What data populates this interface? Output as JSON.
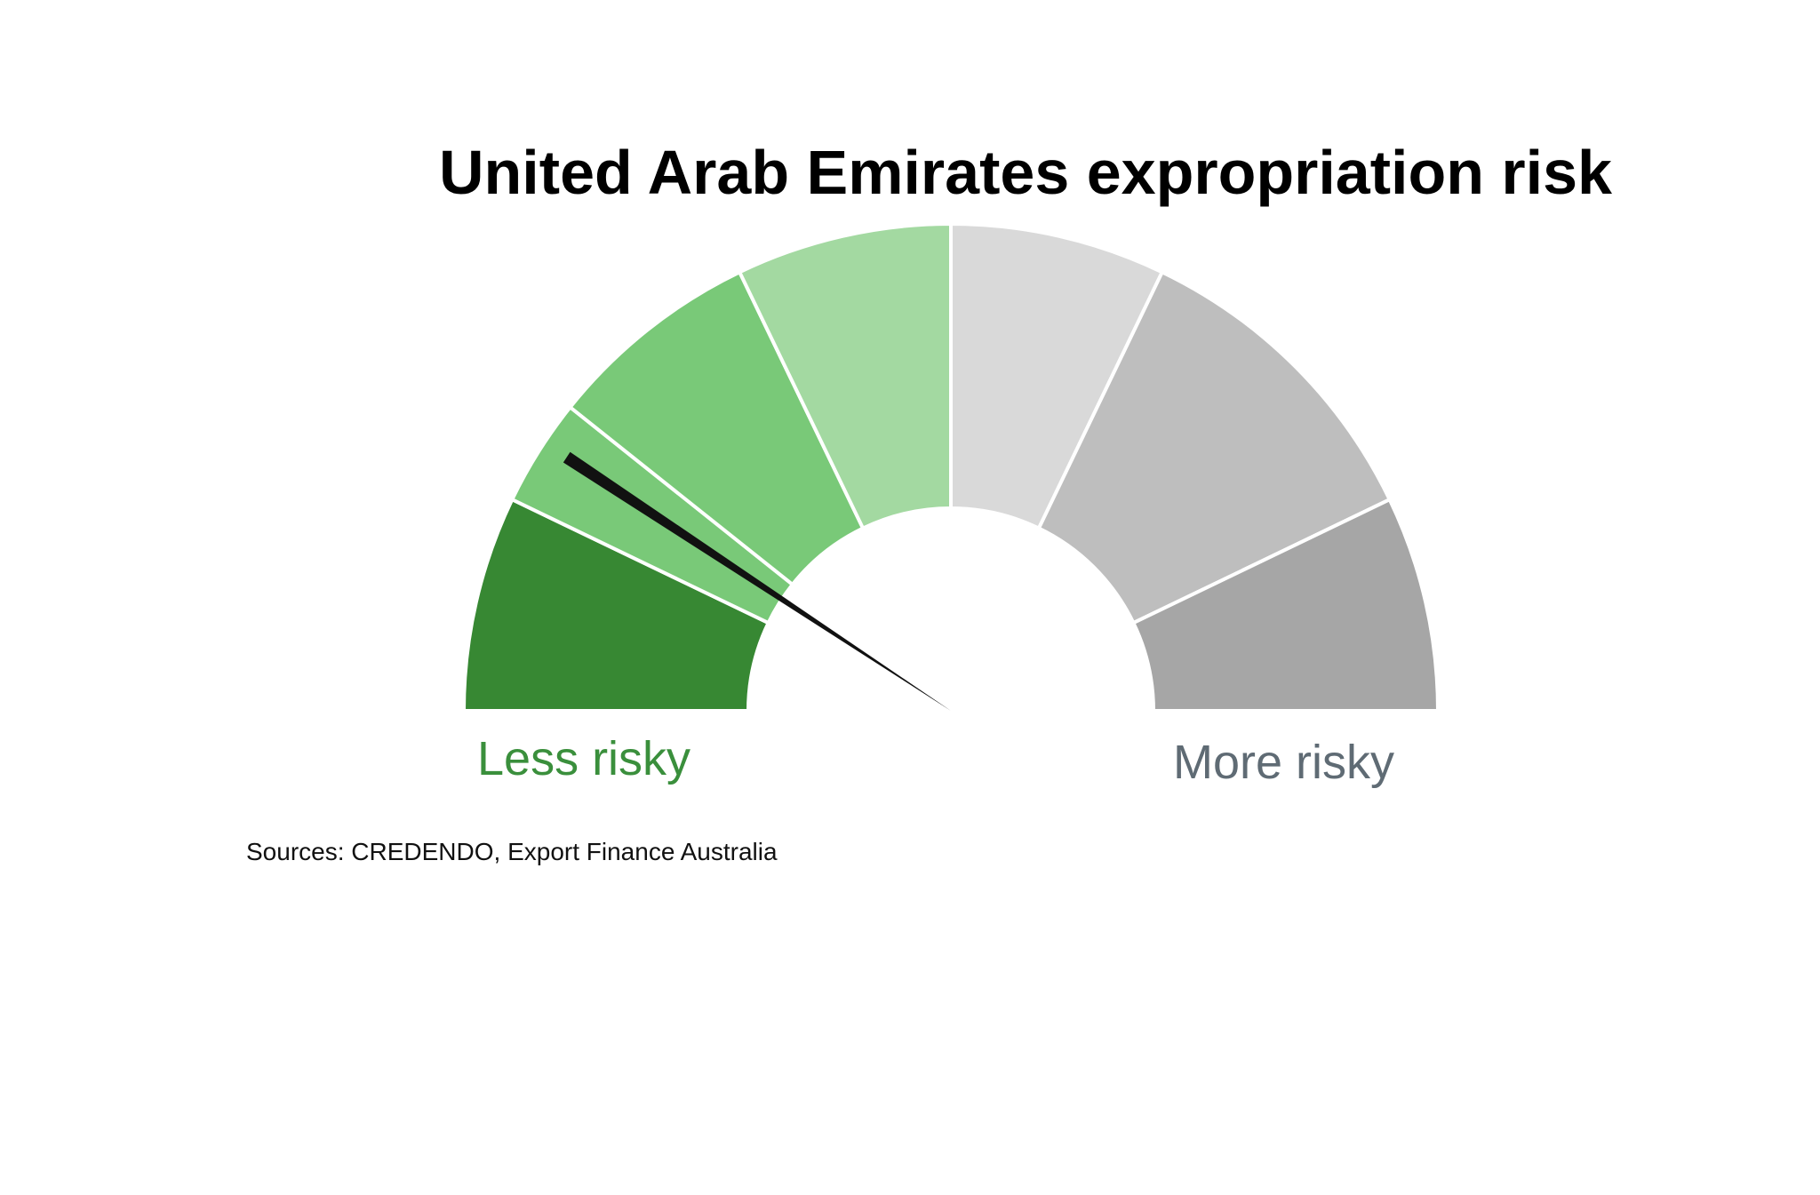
{
  "chart_data": {
    "type": "gauge",
    "title": "United Arab Emirates expropriation risk",
    "scale": [
      0,
      7
    ],
    "value": 1.3,
    "segments": [
      {
        "from": 0.0,
        "to": 1.0,
        "color": "#378833"
      },
      {
        "from": 1.0,
        "to": 1.5,
        "color": "#79c978"
      },
      {
        "from": 1.5,
        "to": 2.5,
        "color": "#79c978"
      },
      {
        "from": 2.5,
        "to": 3.5,
        "color": "#a3d9a1"
      },
      {
        "from": 3.5,
        "to": 4.5,
        "color": "#d9d9d9"
      },
      {
        "from": 4.5,
        "to": 6.0,
        "color": "#bebebe"
      },
      {
        "from": 6.0,
        "to": 7.0,
        "color": "#a6a6a6"
      }
    ],
    "needle_color": "#111111",
    "left_label": "Less risky",
    "left_label_color": "#3a8f3c",
    "right_label": "More risky",
    "right_label_color": "#5f6b74",
    "source": "Sources: CREDENDO, Export Finance Australia"
  }
}
